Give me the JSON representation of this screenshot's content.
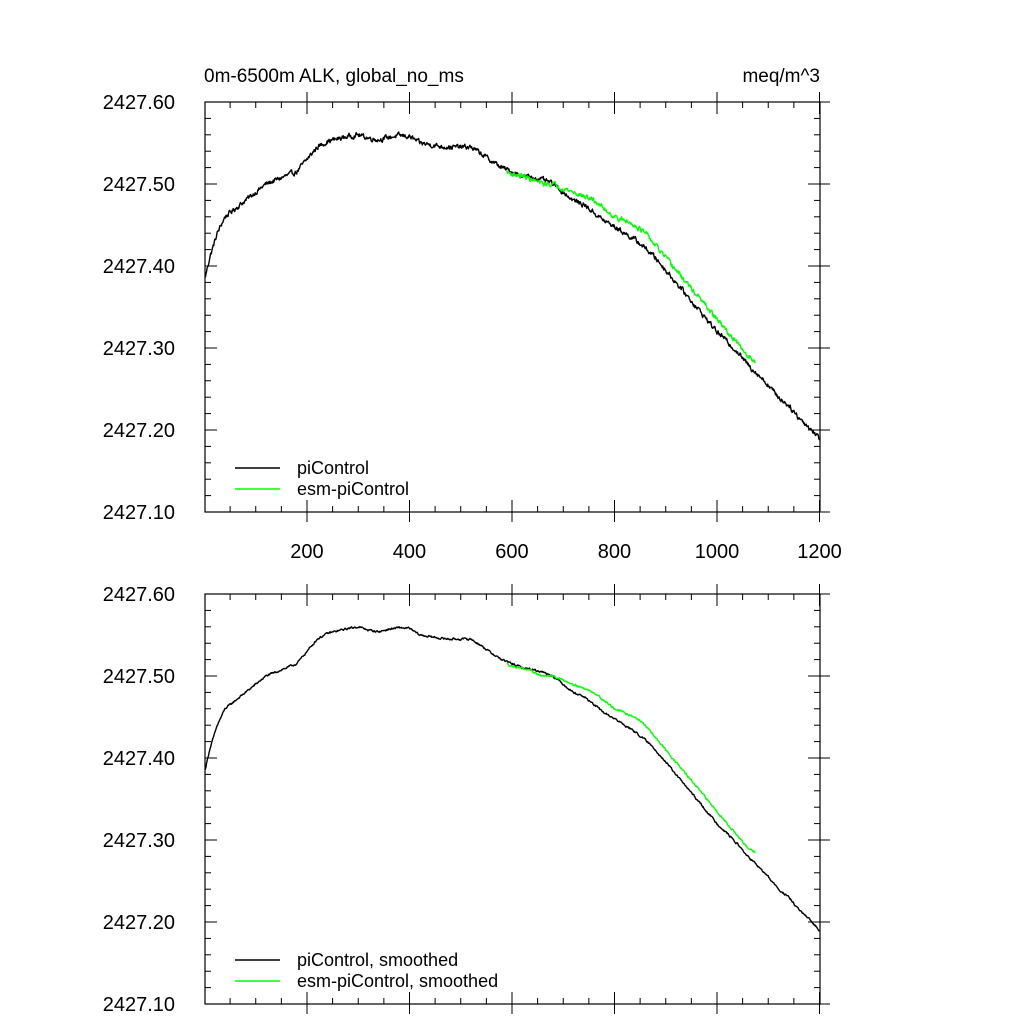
{
  "figure": {
    "title_left": "0m-6500m ALK, global_no_ms",
    "title_right": "meq/m^3"
  },
  "chart_data": [
    {
      "type": "line",
      "panel": "top",
      "title": "0m-6500m ALK, global_no_ms",
      "units": "meq/m^3",
      "xlim": [
        1,
        1201
      ],
      "ylim": [
        2427.1,
        2427.6
      ],
      "xticks": [
        200,
        400,
        600,
        800,
        1000,
        1200
      ],
      "xtick_labels": [
        "200",
        "400",
        "600",
        "800",
        "1000",
        "1200"
      ],
      "yticks": [
        2427.1,
        2427.2,
        2427.3,
        2427.4,
        2427.5,
        2427.6
      ],
      "ytick_labels": [
        "2427.10",
        "2427.20",
        "2427.30",
        "2427.40",
        "2427.50",
        "2427.60"
      ],
      "legend_position": "bottom-left",
      "series": [
        {
          "name": "piControl",
          "color": "#000000",
          "noise": 0.0055,
          "x": [
            1,
            10,
            25,
            40,
            60,
            80,
            100,
            120,
            140,
            160,
            180,
            200,
            220,
            240,
            260,
            280,
            300,
            320,
            340,
            360,
            380,
            400,
            420,
            440,
            460,
            480,
            500,
            520,
            540,
            560,
            580,
            600,
            620,
            640,
            660,
            680,
            700,
            720,
            740,
            760,
            780,
            800,
            820,
            840,
            860,
            880,
            900,
            920,
            940,
            960,
            980,
            1000,
            1020,
            1040,
            1060,
            1080,
            1100,
            1120,
            1140,
            1160,
            1180,
            1200
          ],
          "values": [
            2427.385,
            2427.41,
            2427.44,
            2427.46,
            2427.47,
            2427.48,
            2427.49,
            2427.5,
            2427.505,
            2427.51,
            2427.515,
            2427.53,
            2427.545,
            2427.552,
            2427.555,
            2427.558,
            2427.56,
            2427.556,
            2427.554,
            2427.557,
            2427.559,
            2427.558,
            2427.55,
            2427.548,
            2427.546,
            2427.545,
            2427.545,
            2427.545,
            2427.537,
            2427.528,
            2427.52,
            2427.515,
            2427.51,
            2427.508,
            2427.505,
            2427.5,
            2427.49,
            2427.48,
            2427.475,
            2427.465,
            2427.455,
            2427.448,
            2427.44,
            2427.432,
            2427.422,
            2427.41,
            2427.395,
            2427.38,
            2427.365,
            2427.35,
            2427.335,
            2427.32,
            2427.308,
            2427.295,
            2427.28,
            2427.268,
            2427.255,
            2427.24,
            2427.23,
            2427.215,
            2427.203,
            2427.19
          ]
        },
        {
          "name": "esm-piControl",
          "color": "#00ff00",
          "noise": 0.0055,
          "x": [
            590,
            600,
            620,
            640,
            660,
            680,
            700,
            720,
            740,
            760,
            780,
            800,
            820,
            840,
            860,
            880,
            900,
            920,
            940,
            960,
            980,
            1000,
            1020,
            1040,
            1060,
            1075
          ],
          "values": [
            2427.515,
            2427.512,
            2427.51,
            2427.505,
            2427.5,
            2427.5,
            2427.495,
            2427.49,
            2427.485,
            2427.48,
            2427.47,
            2427.46,
            2427.455,
            2427.45,
            2427.44,
            2427.425,
            2427.41,
            2427.395,
            2427.38,
            2427.365,
            2427.35,
            2427.335,
            2427.32,
            2427.305,
            2427.29,
            2427.285
          ]
        }
      ]
    },
    {
      "type": "line",
      "panel": "bottom",
      "xlim": [
        1,
        1201
      ],
      "ylim": [
        2427.1,
        2427.6
      ],
      "xticks": [
        200,
        400,
        600,
        800,
        1000,
        1200
      ],
      "yticks": [
        2427.1,
        2427.2,
        2427.3,
        2427.4,
        2427.5,
        2427.6
      ],
      "ytick_labels": [
        "2427.10",
        "2427.20",
        "2427.30",
        "2427.40",
        "2427.50",
        "2427.60"
      ],
      "legend_position": "bottom-left",
      "series": [
        {
          "name": "piControl, smoothed",
          "color": "#000000",
          "noise": 0.0022,
          "x": [
            1,
            10,
            25,
            40,
            60,
            80,
            100,
            120,
            140,
            160,
            180,
            200,
            220,
            240,
            260,
            280,
            300,
            320,
            340,
            360,
            380,
            400,
            420,
            440,
            460,
            480,
            500,
            520,
            540,
            560,
            580,
            600,
            620,
            640,
            660,
            680,
            700,
            720,
            740,
            760,
            780,
            800,
            820,
            840,
            860,
            880,
            900,
            920,
            940,
            960,
            980,
            1000,
            1020,
            1040,
            1060,
            1080,
            1100,
            1120,
            1140,
            1160,
            1180,
            1200
          ],
          "values": [
            2427.385,
            2427.41,
            2427.44,
            2427.46,
            2427.47,
            2427.48,
            2427.49,
            2427.5,
            2427.505,
            2427.51,
            2427.515,
            2427.53,
            2427.545,
            2427.552,
            2427.555,
            2427.558,
            2427.56,
            2427.556,
            2427.554,
            2427.557,
            2427.559,
            2427.558,
            2427.55,
            2427.548,
            2427.546,
            2427.545,
            2427.545,
            2427.545,
            2427.537,
            2427.528,
            2427.52,
            2427.515,
            2427.51,
            2427.508,
            2427.505,
            2427.5,
            2427.49,
            2427.48,
            2427.475,
            2427.465,
            2427.455,
            2427.448,
            2427.44,
            2427.432,
            2427.422,
            2427.41,
            2427.395,
            2427.38,
            2427.365,
            2427.35,
            2427.335,
            2427.32,
            2427.308,
            2427.295,
            2427.28,
            2427.268,
            2427.255,
            2427.24,
            2427.23,
            2427.215,
            2427.203,
            2427.19
          ]
        },
        {
          "name": "esm-piControl, smoothed",
          "color": "#00ff00",
          "noise": 0.0022,
          "x": [
            590,
            600,
            620,
            640,
            660,
            680,
            700,
            720,
            740,
            760,
            780,
            800,
            820,
            840,
            860,
            880,
            900,
            920,
            940,
            960,
            980,
            1000,
            1020,
            1040,
            1060,
            1075
          ],
          "values": [
            2427.515,
            2427.512,
            2427.51,
            2427.505,
            2427.5,
            2427.5,
            2427.495,
            2427.49,
            2427.485,
            2427.48,
            2427.47,
            2427.46,
            2427.455,
            2427.45,
            2427.44,
            2427.425,
            2427.41,
            2427.395,
            2427.38,
            2427.365,
            2427.35,
            2427.335,
            2427.32,
            2427.305,
            2427.29,
            2427.285
          ]
        }
      ]
    }
  ]
}
